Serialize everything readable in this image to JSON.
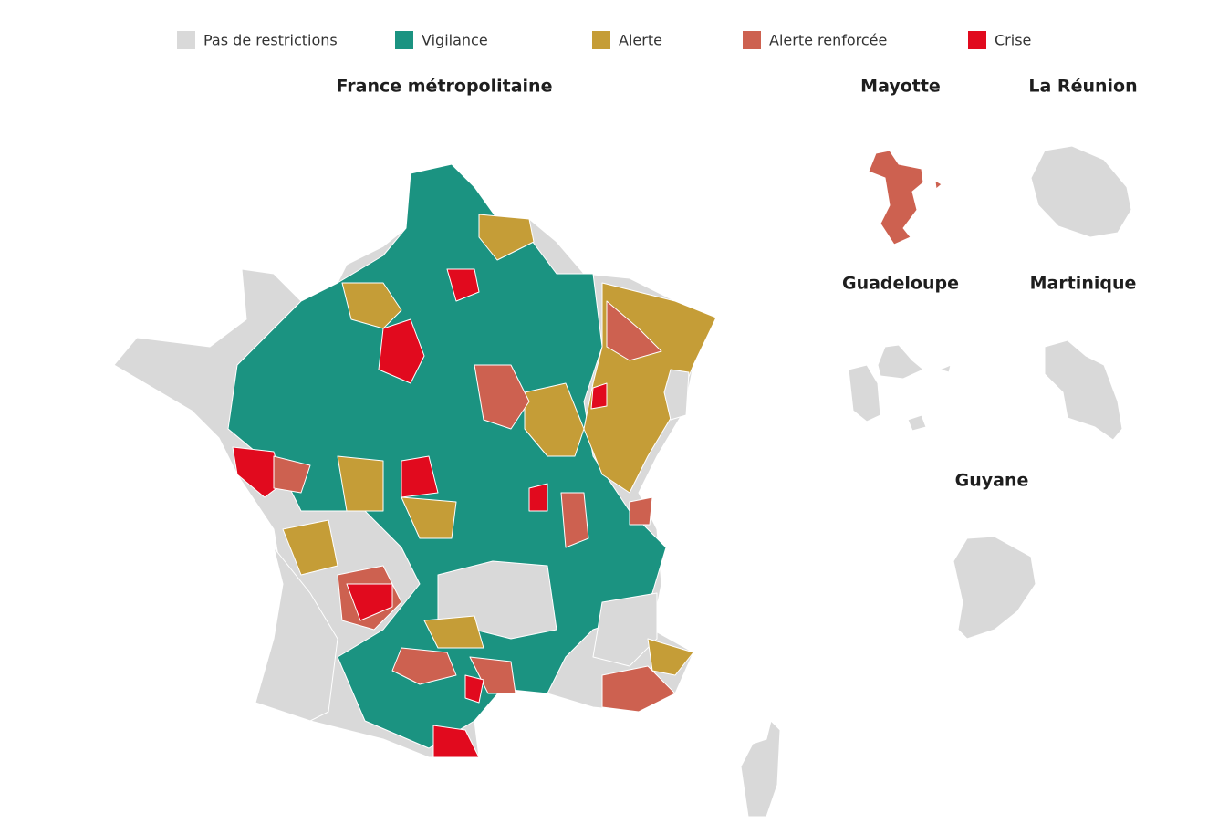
{
  "legend": [
    {
      "label": "Pas de restrictions",
      "color": "#d9d9d9"
    },
    {
      "label": "Vigilance",
      "color": "#1b9381"
    },
    {
      "label": "Alerte",
      "color": "#c59d37"
    },
    {
      "label": "Alerte renforcée",
      "color": "#cd6150"
    },
    {
      "label": "Crise",
      "color": "#e10a1e"
    }
  ],
  "panels": [
    "France métropolitaine",
    "Mayotte",
    "La Réunion",
    "Guadeloupe",
    "Martinique",
    "Guyane"
  ]
}
